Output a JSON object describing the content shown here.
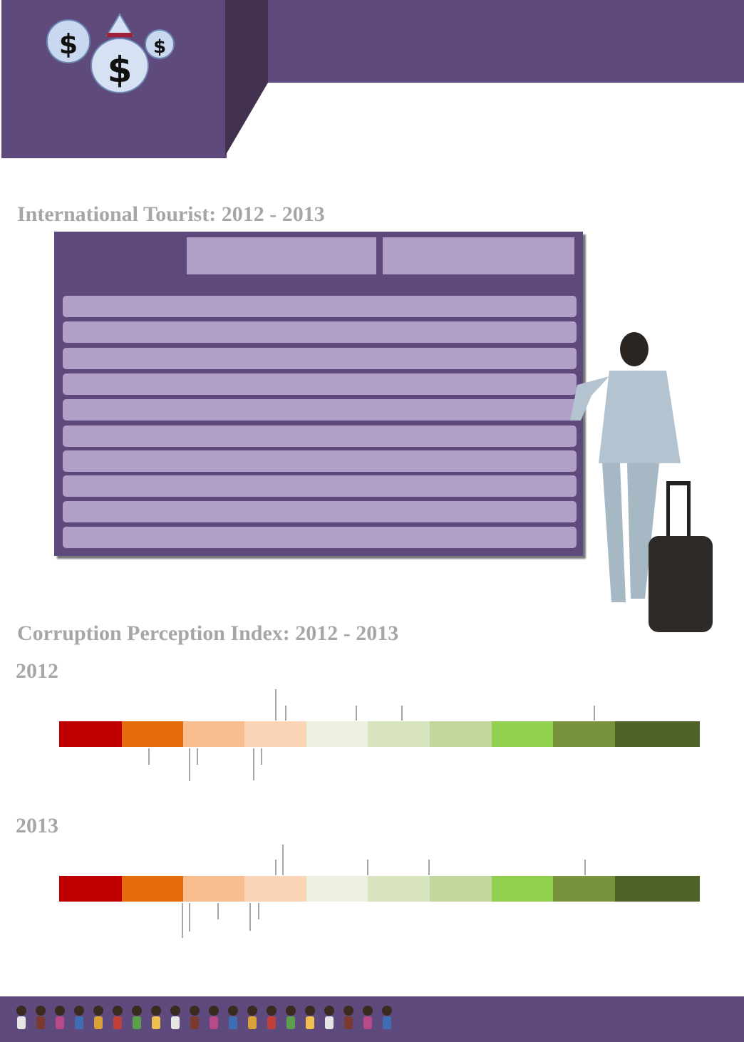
{
  "tourist": {
    "title": "International Tourist: 2012 - 2013"
  },
  "cpi": {
    "title": "Corruption Perception Index: 2012 - 2013",
    "years": [
      "2012",
      "2013"
    ]
  }
}
